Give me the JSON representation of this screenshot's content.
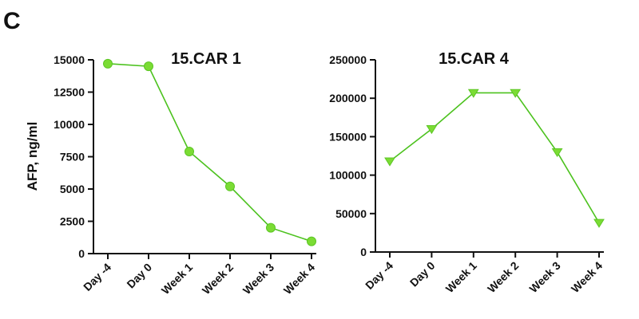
{
  "panel_label": "C",
  "colors": {
    "series": "#7bdc34",
    "line": "#4cc21e",
    "axis": "#111111"
  },
  "chart_data": [
    {
      "type": "line",
      "title": "15.CAR 1",
      "ylabel": "AFP, ng/ml",
      "xlabel": "",
      "categories": [
        "Day -4",
        "Day 0",
        "Week 1",
        "Week 2",
        "Week 3",
        "Week 4"
      ],
      "series": [
        {
          "marker": "circle",
          "values": [
            14700,
            14500,
            7900,
            5200,
            2000,
            950
          ]
        }
      ],
      "ylim": [
        0,
        15000
      ],
      "yticks": [
        0,
        2500,
        5000,
        7500,
        10000,
        12500,
        15000
      ],
      "ytick_labels": [
        "0",
        "2500",
        "5000",
        "7500",
        "10000",
        "12500",
        "15000"
      ],
      "grid": false
    },
    {
      "type": "line",
      "title": "15.CAR 4",
      "ylabel": "",
      "xlabel": "",
      "categories": [
        "Day -4",
        "Day 0",
        "Week 1",
        "Week 2",
        "Week 3",
        "Week 4"
      ],
      "series": [
        {
          "marker": "triangle-down",
          "values": [
            118000,
            160000,
            207000,
            207000,
            130000,
            38000
          ]
        }
      ],
      "ylim": [
        0,
        250000
      ],
      "yticks": [
        0,
        50000,
        100000,
        150000,
        200000,
        250000
      ],
      "ytick_labels": [
        "0",
        "50000",
        "100000",
        "150000",
        "200000",
        "250000"
      ],
      "grid": false
    }
  ]
}
